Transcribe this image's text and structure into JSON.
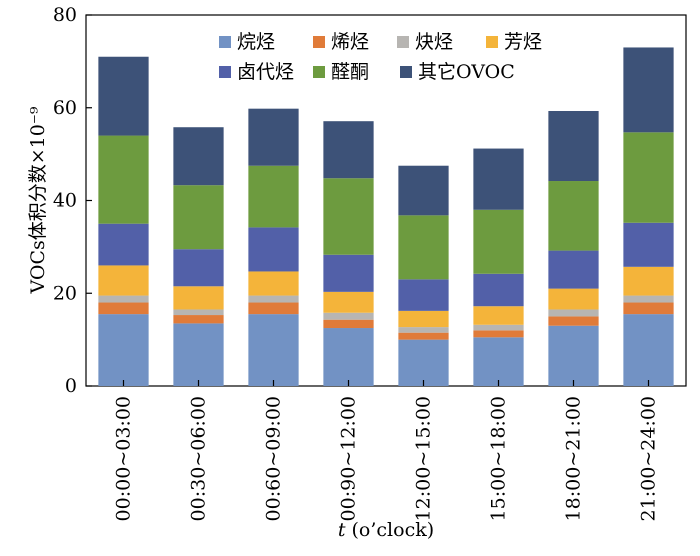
{
  "chart_data": {
    "type": "bar",
    "stacked": true,
    "title": "",
    "xlabel": "t (o’clock)",
    "xlabel_italic_part": "t",
    "xlabel_rest": " (o’clock)",
    "ylabel": "VOCs体积分数×10⁻⁹",
    "ylim": [
      0,
      80
    ],
    "yticks": [
      0,
      20,
      40,
      60,
      80
    ],
    "grid": false,
    "legend_position": "top-right",
    "categories": [
      "00:00~03:00",
      "00:30~06:00",
      "00:60~09:00",
      "00:90~12:00",
      "12:00~15:00",
      "15:00~18:00",
      "18:00~21:00",
      "21:00~24:00"
    ],
    "series": [
      {
        "name": "烷烃",
        "color": "#7292c4",
        "values": [
          15.5,
          13.5,
          15.5,
          12.5,
          10.0,
          10.5,
          13.0,
          15.5
        ]
      },
      {
        "name": "烯烃",
        "color": "#e07b39",
        "values": [
          2.5,
          1.8,
          2.5,
          1.8,
          1.5,
          1.5,
          2.0,
          2.5
        ]
      },
      {
        "name": "炔烃",
        "color": "#b7b5b2",
        "values": [
          1.5,
          1.2,
          1.5,
          1.5,
          1.2,
          1.2,
          1.5,
          1.5
        ]
      },
      {
        "name": "芳烃",
        "color": "#f4b43a",
        "values": [
          6.5,
          5.0,
          5.2,
          4.5,
          3.5,
          4.0,
          4.5,
          6.2
        ]
      },
      {
        "name": "卤代烃",
        "color": "#5260a8",
        "values": [
          9.0,
          8.0,
          9.5,
          8.0,
          6.8,
          7.0,
          8.2,
          9.5
        ]
      },
      {
        "name": "醛酮",
        "color": "#6d9b3f",
        "values": [
          19.0,
          13.8,
          13.3,
          16.5,
          13.8,
          13.8,
          15.0,
          19.5
        ]
      },
      {
        "name": "其它OVOC",
        "color": "#3d5278",
        "values": [
          17.0,
          12.5,
          12.3,
          12.3,
          10.7,
          13.2,
          15.1,
          18.3
        ]
      }
    ]
  }
}
